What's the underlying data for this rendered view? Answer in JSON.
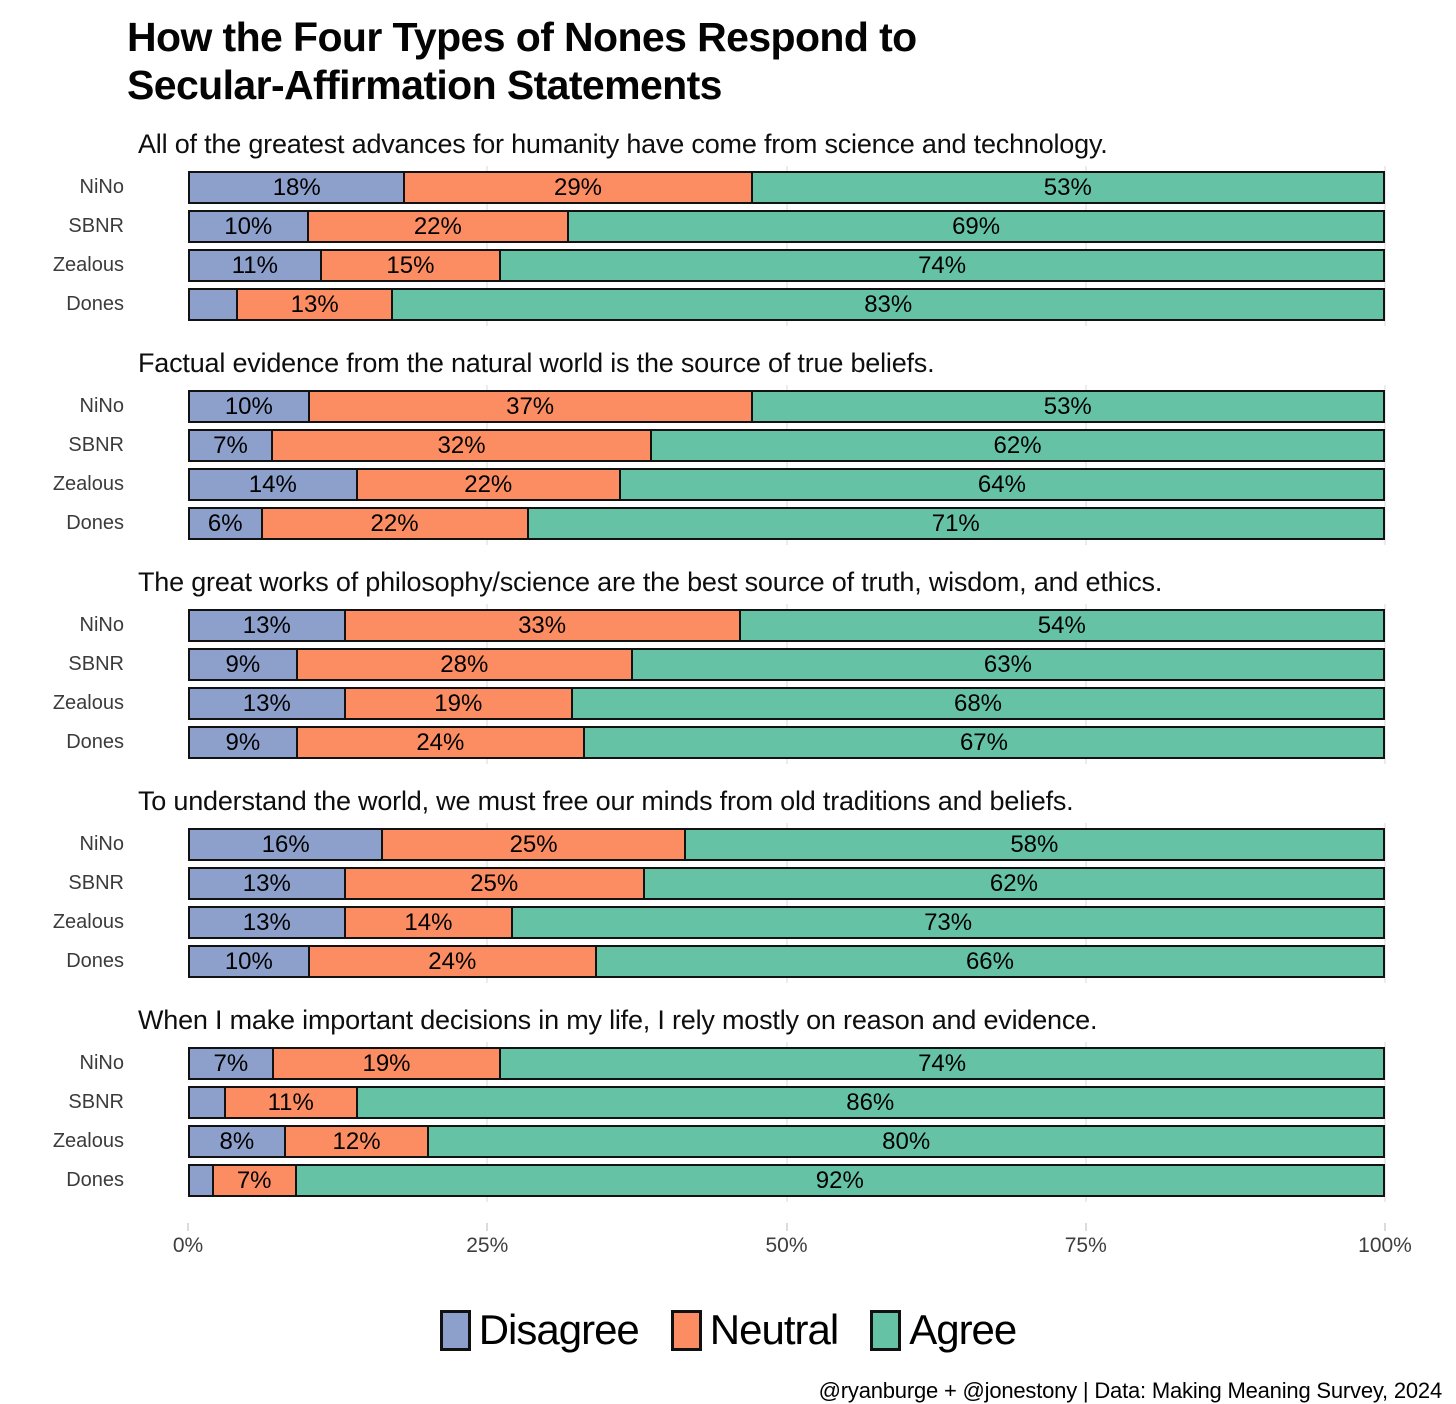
{
  "title": {
    "line1": "How the Four Types of Nones Respond to",
    "line2": "Secular-Affirmation Statements"
  },
  "footer": "@ryanburge + @jonestony | Data: Making Meaning Survey, 2024",
  "colors": {
    "Disagree": "#8da0cb",
    "Neutral": "#fc8d62",
    "Agree": "#66c2a5",
    "bar_border": "#121212",
    "gridline": "#ececec"
  },
  "chart_data": {
    "type": "bar",
    "stacked": true,
    "orientation": "horizontal",
    "title": "How the Four Types of Nones Respond to Secular-Affirmation Statements",
    "x_range": [
      0,
      100
    ],
    "x_tick_labels": [
      "0%",
      "25%",
      "50%",
      "75%",
      "100%"
    ],
    "x_tick_positions": [
      0,
      25,
      50,
      75,
      100
    ],
    "grid": true,
    "legend_position": "bottom",
    "series_names": [
      "Disagree",
      "Neutral",
      "Agree"
    ],
    "categories": [
      "NiNo",
      "SBNR",
      "Zealous",
      "Dones"
    ],
    "min_label_pct": 5,
    "value_suffix": "%",
    "panels": [
      {
        "statement": "All of the greatest advances for humanity have come from science and technology.",
        "rows": [
          [
            18,
            29,
            53
          ],
          [
            10,
            22,
            69
          ],
          [
            11,
            15,
            74
          ],
          [
            4,
            13,
            83
          ]
        ]
      },
      {
        "statement": "Factual evidence from the natural world is the source of true beliefs.",
        "rows": [
          [
            10,
            37,
            53
          ],
          [
            7,
            32,
            62
          ],
          [
            14,
            22,
            64
          ],
          [
            6,
            22,
            71
          ]
        ]
      },
      {
        "statement": "The great works of philosophy/science are the best source of truth, wisdom, and ethics.",
        "rows": [
          [
            13,
            33,
            54
          ],
          [
            9,
            28,
            63
          ],
          [
            13,
            19,
            68
          ],
          [
            9,
            24,
            67
          ]
        ]
      },
      {
        "statement": "To understand the world, we must free our minds from old traditions and beliefs.",
        "rows": [
          [
            16,
            25,
            58
          ],
          [
            13,
            25,
            62
          ],
          [
            13,
            14,
            73
          ],
          [
            10,
            24,
            66
          ]
        ]
      },
      {
        "statement": "When I make important decisions in my life, I rely mostly on reason and evidence.",
        "rows": [
          [
            7,
            19,
            74
          ],
          [
            3,
            11,
            86
          ],
          [
            8,
            12,
            80
          ],
          [
            2,
            7,
            92
          ]
        ]
      }
    ]
  }
}
